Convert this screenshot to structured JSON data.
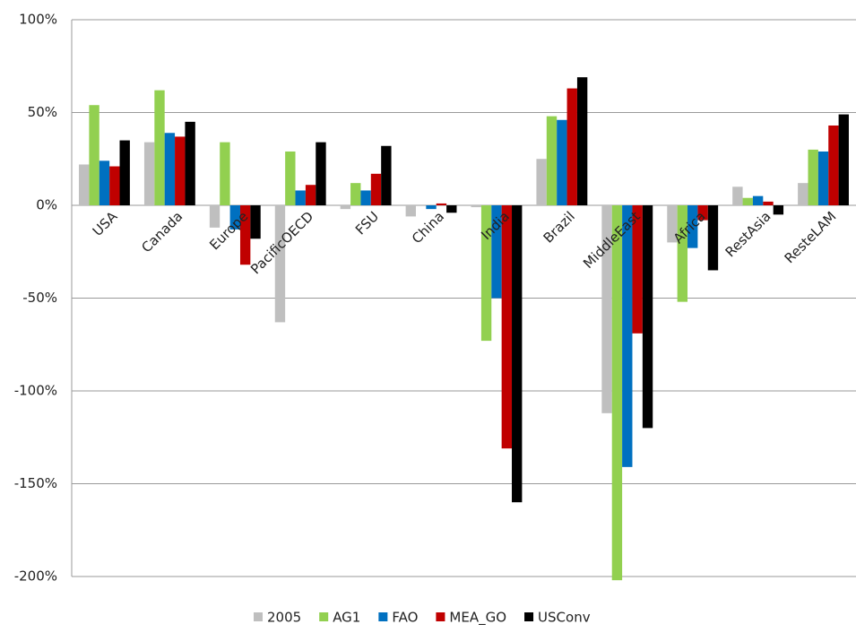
{
  "chart_data": {
    "type": "bar",
    "categories": [
      "USA",
      "Canada",
      "Europe",
      "PacificOECD",
      "FSU",
      "China",
      "India",
      "Brazil",
      "MiddleEast",
      "Africa",
      "RestAsia",
      "ResteLAM"
    ],
    "series": [
      {
        "name": "2005",
        "color": "#bfbfbf",
        "values": [
          22,
          34,
          -12,
          -63,
          -2,
          -6,
          -1,
          25,
          -112,
          -20,
          10,
          12
        ]
      },
      {
        "name": "AG1",
        "color": "#92d050",
        "values": [
          54,
          62,
          34,
          29,
          12,
          0,
          -73,
          48,
          -202,
          -52,
          4,
          30
        ]
      },
      {
        "name": "FAO",
        "color": "#0070c0",
        "values": [
          24,
          39,
          -13,
          8,
          8,
          -2,
          -50,
          46,
          -141,
          -23,
          5,
          29
        ]
      },
      {
        "name": "MEA_GO",
        "color": "#c00000",
        "values": [
          21,
          37,
          -32,
          11,
          17,
          1,
          -131,
          63,
          -69,
          -8,
          2,
          43
        ]
      },
      {
        "name": "USConv",
        "color": "#000000",
        "values": [
          35,
          45,
          -18,
          34,
          32,
          -4,
          -160,
          69,
          -120,
          -35,
          -5,
          49
        ]
      }
    ],
    "ylim": [
      -200,
      100
    ],
    "yticks": [
      {
        "value": -200,
        "label": "-200%"
      },
      {
        "value": -150,
        "label": "-150%"
      },
      {
        "value": -100,
        "label": "-100%"
      },
      {
        "value": -50,
        "label": "-50%"
      },
      {
        "value": 0,
        "label": "0%"
      },
      {
        "value": 50,
        "label": "50%"
      },
      {
        "value": 100,
        "label": "100%"
      }
    ],
    "grid": true,
    "legend": "bottom"
  }
}
